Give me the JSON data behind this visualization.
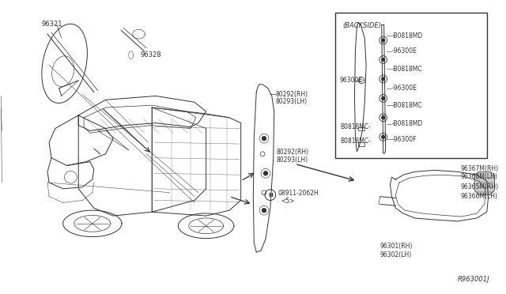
{
  "background_color": "#ffffff",
  "fig_width": 6.4,
  "fig_height": 3.72,
  "dpi": 100,
  "line_color": "#333333",
  "text_color": "#333333",
  "parts": {
    "mirror_glass_label": "96321",
    "bracket_label": "96328",
    "door_panel_label1": "80292(RH)",
    "door_panel_label2": "80293(LH)",
    "door_panel_label3": "80292(RH)",
    "door_panel_label4": "80293(LH)",
    "nut_label1": "08911-2062H",
    "nut_label2": "<5>",
    "assembly_label1": "96301(RH)",
    "assembly_label2": "96302(LH)",
    "signal_label1": "96367M(RH)",
    "signal_label2": "96368M(LH)",
    "housing_label1": "96365M(RH)",
    "housing_label2": "96366M(LH)",
    "diagram_id": "R963001J",
    "backside_title": "(BACKSIDE)",
    "b0818md_1": "B0818MD",
    "c96300e_1": "96300E",
    "b0818mc_1": "B0818MC",
    "c96300e_2": "96300E",
    "b0818mc_2": "B0818MC",
    "b0818md_2": "B0818MD",
    "c96300f": "96300F",
    "left_96300e": "96300E",
    "left_b0818mc_1": "B0818MC",
    "left_b0818mc_2": "B0818MC"
  }
}
